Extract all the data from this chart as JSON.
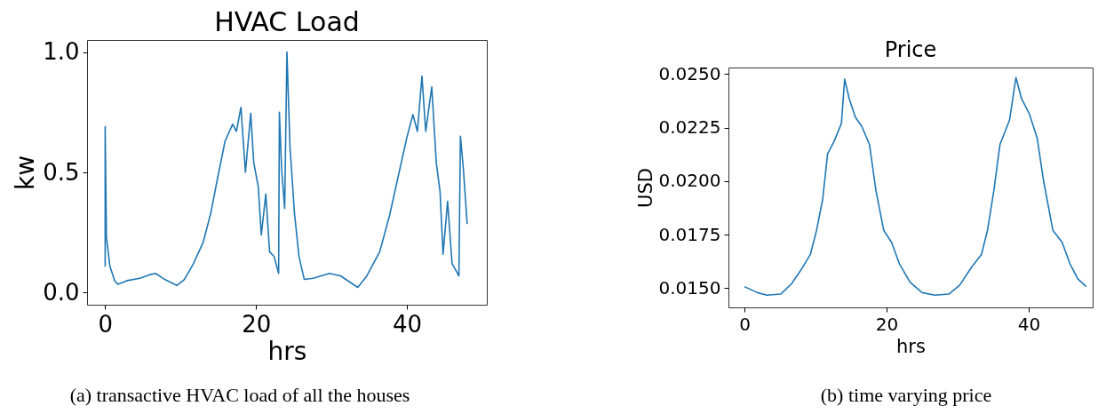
{
  "chart_data": [
    {
      "type": "line",
      "title": "HVAC Load",
      "xlabel": "hrs",
      "ylabel": "kw",
      "annotations": [
        "(a) transactive HVAC load of all the houses"
      ],
      "x": [
        0,
        0.0,
        0.17,
        0.63,
        1.26,
        1.67,
        2.9,
        4.6,
        5.9,
        6.7,
        7.9,
        9.5,
        10.5,
        11.7,
        13,
        14,
        14.9,
        15.9,
        16.9,
        17.4,
        18,
        18.6,
        19.3,
        19.7,
        20.3,
        20.7,
        21.3,
        21.8,
        22.4,
        23,
        23.1,
        23.4,
        23.8,
        24.1,
        24.5,
        25.1,
        25.7,
        26.4,
        27.6,
        29.7,
        31.2,
        33.5,
        34.7,
        36.4,
        37.7,
        38.9,
        40,
        40.8,
        41.4,
        42,
        42.5,
        43.3,
        43.9,
        44.4,
        44.8,
        45.4,
        46,
        46.9,
        47.1,
        47.5,
        48
      ],
      "series": [
        {
          "color": "#1f77b4",
          "values": [
            0.108,
            0.69,
            0.23,
            0.11,
            0.05,
            0.035,
            0.05,
            0.06,
            0.075,
            0.08,
            0.055,
            0.03,
            0.055,
            0.12,
            0.21,
            0.33,
            0.475,
            0.63,
            0.7,
            0.67,
            0.77,
            0.5,
            0.745,
            0.54,
            0.44,
            0.24,
            0.41,
            0.17,
            0.15,
            0.08,
            0.75,
            0.51,
            0.35,
            1.0,
            0.61,
            0.33,
            0.15,
            0.055,
            0.06,
            0.08,
            0.07,
            0.022,
            0.07,
            0.17,
            0.32,
            0.49,
            0.645,
            0.74,
            0.67,
            0.9,
            0.67,
            0.855,
            0.54,
            0.42,
            0.16,
            0.38,
            0.12,
            0.07,
            0.65,
            0.51,
            0.285
          ]
        }
      ],
      "xlim": [
        -2.4,
        50.6
      ],
      "ylim": [
        -0.05,
        1.05
      ],
      "xticks": [
        0,
        20,
        40
      ],
      "yticks": [
        {
          "value": 0,
          "label": "0.0"
        },
        {
          "value": 0.5,
          "label": "0.5"
        },
        {
          "value": 1,
          "label": "1.0"
        }
      ],
      "grid": false
    },
    {
      "type": "line",
      "title": "Price",
      "xlabel": "hrs",
      "ylabel": "USD",
      "annotations": [
        "(b) time varying price"
      ],
      "x": [
        0,
        1.84,
        3.15,
        5.1,
        6.65,
        7.96,
        9.27,
        10.15,
        11.0,
        11.7,
        12.6,
        13.65,
        14.1,
        14.75,
        15.6,
        16.5,
        17.6,
        18.5,
        19.6,
        20.7,
        21.8,
        23.3,
        25.0,
        26.8,
        28.75,
        30.3,
        32,
        33.35,
        34.2,
        35.1,
        35.95,
        37.3,
        38.2,
        39.0,
        40.1,
        41.2,
        42.1,
        43.4,
        44.7,
        45.8,
        46.9,
        48.1
      ],
      "series": [
        {
          "color": "#1f77b4",
          "values": [
            0.01507,
            0.01479,
            0.01467,
            0.01472,
            0.01521,
            0.01585,
            0.01657,
            0.0177,
            0.01913,
            0.02127,
            0.02184,
            0.02269,
            0.02476,
            0.02384,
            0.02299,
            0.02256,
            0.0217,
            0.01956,
            0.0177,
            0.01714,
            0.01614,
            0.01528,
            0.01479,
            0.01467,
            0.01472,
            0.01514,
            0.016,
            0.01657,
            0.0177,
            0.01956,
            0.0217,
            0.02284,
            0.02483,
            0.02384,
            0.02313,
            0.02199,
            0.01999,
            0.0177,
            0.01714,
            0.01614,
            0.01543,
            0.01507
          ]
        }
      ],
      "xlim": [
        -2.25,
        49.0
      ],
      "ylim": [
        0.0141,
        0.0253
      ],
      "xticks": [
        0,
        20,
        40
      ],
      "yticks": [
        {
          "value": 0.015,
          "label": "0.0150"
        },
        {
          "value": 0.0175,
          "label": "0.0175"
        },
        {
          "value": 0.02,
          "label": "0.0200"
        },
        {
          "value": 0.0225,
          "label": "0.0225"
        },
        {
          "value": 0.025,
          "label": "0.0250"
        }
      ],
      "grid": false
    }
  ]
}
